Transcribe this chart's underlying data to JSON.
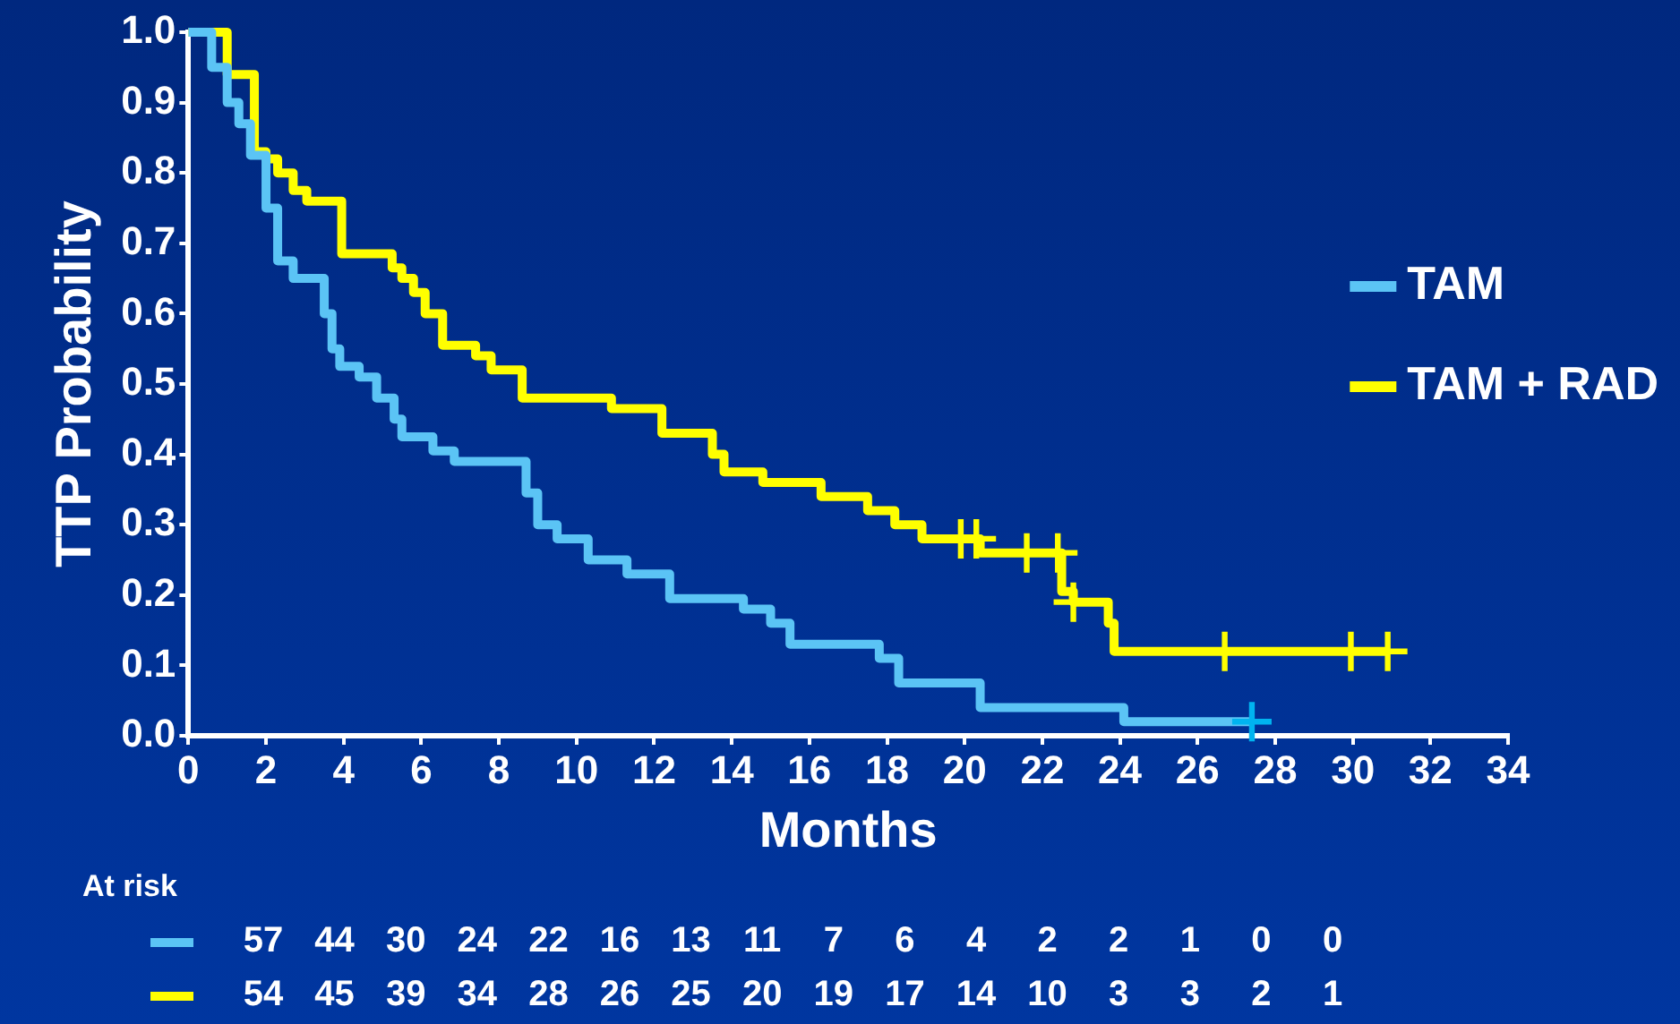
{
  "chart_data": {
    "type": "step",
    "xlabel": "Months",
    "ylabel": "TTP Probability",
    "xlim": [
      0,
      34
    ],
    "xticks": [
      0,
      2,
      4,
      6,
      8,
      10,
      12,
      14,
      16,
      18,
      20,
      22,
      24,
      26,
      28,
      30,
      32,
      34
    ],
    "ylim": [
      0,
      1
    ],
    "yticks": [
      {
        "value": 0,
        "label": "0.0"
      },
      {
        "value": 0.1,
        "label": "0.1"
      },
      {
        "value": 0.2,
        "label": "0.2"
      },
      {
        "value": 0.3,
        "label": "0.3"
      },
      {
        "value": 0.4,
        "label": "0.4"
      },
      {
        "value": 0.5,
        "label": "0.5"
      },
      {
        "value": 0.6,
        "label": "0.6"
      },
      {
        "value": 0.7,
        "label": "0.7"
      },
      {
        "value": 0.8,
        "label": "0.8"
      },
      {
        "value": 0.9,
        "label": "0.9"
      },
      {
        "value": 1,
        "label": "1.0"
      }
    ],
    "grid": false,
    "legend": "right",
    "marker": "none",
    "line_style": "solid",
    "series": [
      {
        "name": "TAM",
        "color": "#5bc4f5",
        "x": [
          0,
          0.6,
          1.0,
          1.3,
          1.6,
          2.0,
          2.3,
          2.7,
          3.5,
          3.7,
          3.9,
          4.4,
          4.85,
          5.3,
          5.5,
          6.3,
          6.85,
          8.7,
          9.0,
          9.5,
          10.3,
          11.3,
          12.4,
          14.3,
          15.0,
          15.5,
          17.8,
          18.3,
          20.4,
          24.1,
          27.4
        ],
        "values": [
          1,
          0.95,
          0.9,
          0.87,
          0.825,
          0.75,
          0.675,
          0.65,
          0.6,
          0.55,
          0.525,
          0.51,
          0.48,
          0.45,
          0.425,
          0.405,
          0.39,
          0.345,
          0.3,
          0.28,
          0.25,
          0.23,
          0.195,
          0.18,
          0.16,
          0.13,
          0.11,
          0.075,
          0.04,
          0.02,
          0.02
        ]
      },
      {
        "name": "TAM + RAD",
        "color": "#ffff00",
        "x": [
          0,
          1.0,
          1.7,
          2.0,
          2.3,
          2.7,
          3.05,
          3.95,
          5.25,
          5.5,
          5.8,
          6.1,
          6.55,
          7.4,
          7.8,
          8.6,
          10.9,
          12.2,
          13.5,
          13.8,
          14.8,
          16.3,
          17.5,
          18.2,
          18.9,
          20.4,
          22.5,
          22.8,
          23.7,
          23.85,
          30.9
        ],
        "values": [
          1,
          0.94,
          0.83,
          0.82,
          0.8,
          0.775,
          0.76,
          0.685,
          0.665,
          0.65,
          0.63,
          0.6,
          0.555,
          0.54,
          0.52,
          0.48,
          0.465,
          0.43,
          0.4,
          0.375,
          0.36,
          0.34,
          0.32,
          0.3,
          0.28,
          0.26,
          0.205,
          0.19,
          0.16,
          0.12,
          0.12
        ]
      },
      {
        "type": "scatter",
        "marker": "cross",
        "color": "#00b4f0",
        "x": [
          27.4
        ],
        "values": [
          0.02
        ]
      },
      {
        "type": "scatter",
        "marker": "cross",
        "color": "#ffff00",
        "x": [
          19.9,
          20.3,
          21.6,
          22.4,
          22.8,
          26.7,
          29.95,
          30.9
        ],
        "values": [
          0.28,
          0.28,
          0.26,
          0.26,
          0.19,
          0.12,
          0.12,
          0.12
        ]
      }
    ],
    "annotations": [
      "At risk",
      "57 44 30 24 22 16 13 11 7 6 4 2 2 1 0 0",
      "54 45 39 34 28 26 25 20 19 17 14 10 3 3 2 1"
    ]
  }
}
